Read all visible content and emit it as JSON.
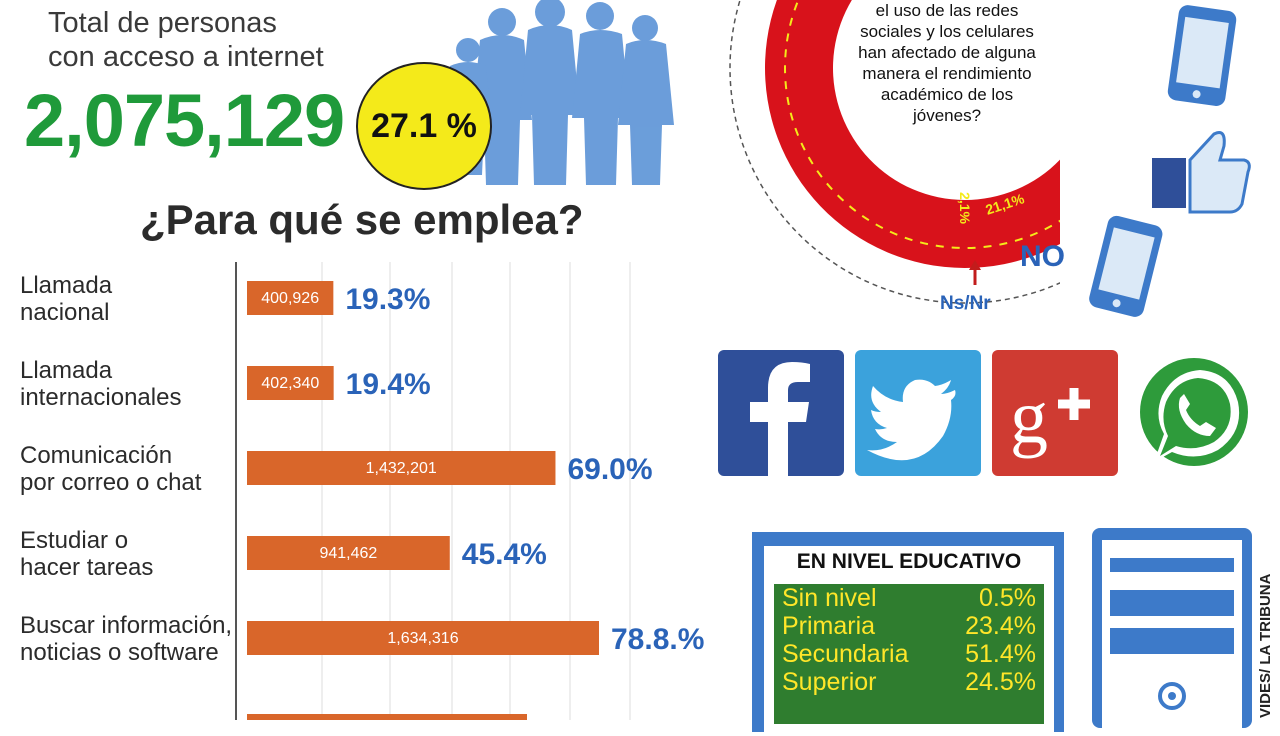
{
  "header": {
    "total_title_line1": "Total de personas",
    "total_title_line2": "con acceso a internet",
    "total_value": "2,075,129",
    "total_pct": "27.1 %"
  },
  "section_title": "¿Para qué se emplea?",
  "chart_data": [
    {
      "type": "bar",
      "orientation": "horizontal",
      "title": "¿Para qué se emplea?",
      "categories": [
        [
          "Llamada",
          "nacional"
        ],
        [
          "Llamada",
          "internacionales"
        ],
        [
          "Comunicación",
          "por correo o chat"
        ],
        [
          "Estudiar o",
          "hacer tareas"
        ],
        [
          "Buscar información,",
          "noticias o software"
        ]
      ],
      "values": [
        400926,
        402340,
        1432201,
        941462,
        1634316
      ],
      "value_labels": [
        "400,926",
        "402,340",
        "1,432,201",
        "941,462",
        "1,634,316"
      ],
      "percent_labels": [
        "19.3%",
        "19.4%",
        "69.0%",
        "45.4%",
        "78.8.%"
      ],
      "percents": [
        19.3,
        19.4,
        69.0,
        45.4,
        78.8
      ],
      "grid": true,
      "colors": {
        "bar": "#d9662a",
        "pct": "#2a63b8"
      }
    },
    {
      "type": "pie",
      "style": "donut",
      "question_lines": [
        "el uso de las redes",
        "sociales y los celulares",
        "han afectado de alguna",
        "manera el rendimiento",
        "académico de los",
        "jóvenes?"
      ],
      "slices": [
        {
          "label": "",
          "value": 76.8,
          "color": "#d8121b"
        },
        {
          "label": "NO",
          "value": 21.1,
          "value_label": "21,1%",
          "color": "#3d7ac9"
        },
        {
          "label": "Ns/Nr",
          "value": 2.1,
          "value_label": "2,1%",
          "color": "#1a2a7a"
        }
      ]
    }
  ],
  "donut_labels": {
    "no": "NO",
    "nsnr": "Ns/Nr",
    "no_pct": "21,1%",
    "nsnr_pct": "2,1%"
  },
  "icons": [
    "people-silhouette-icon",
    "smartphone-icon",
    "thumbs-up-icon",
    "facebook-icon",
    "twitter-icon",
    "google-plus-icon",
    "whatsapp-icon"
  ],
  "education": {
    "title": "EN NIVEL EDUCATIVO",
    "rows": [
      {
        "label": "Sin nivel",
        "value": "0.5%"
      },
      {
        "label": "Primaria",
        "value": "23.4%"
      },
      {
        "label": "Secundaria",
        "value": "51.4%"
      },
      {
        "label": "Superior",
        "value": "24.5%"
      }
    ]
  },
  "source": "VIDES/ LA TRIBUNA"
}
